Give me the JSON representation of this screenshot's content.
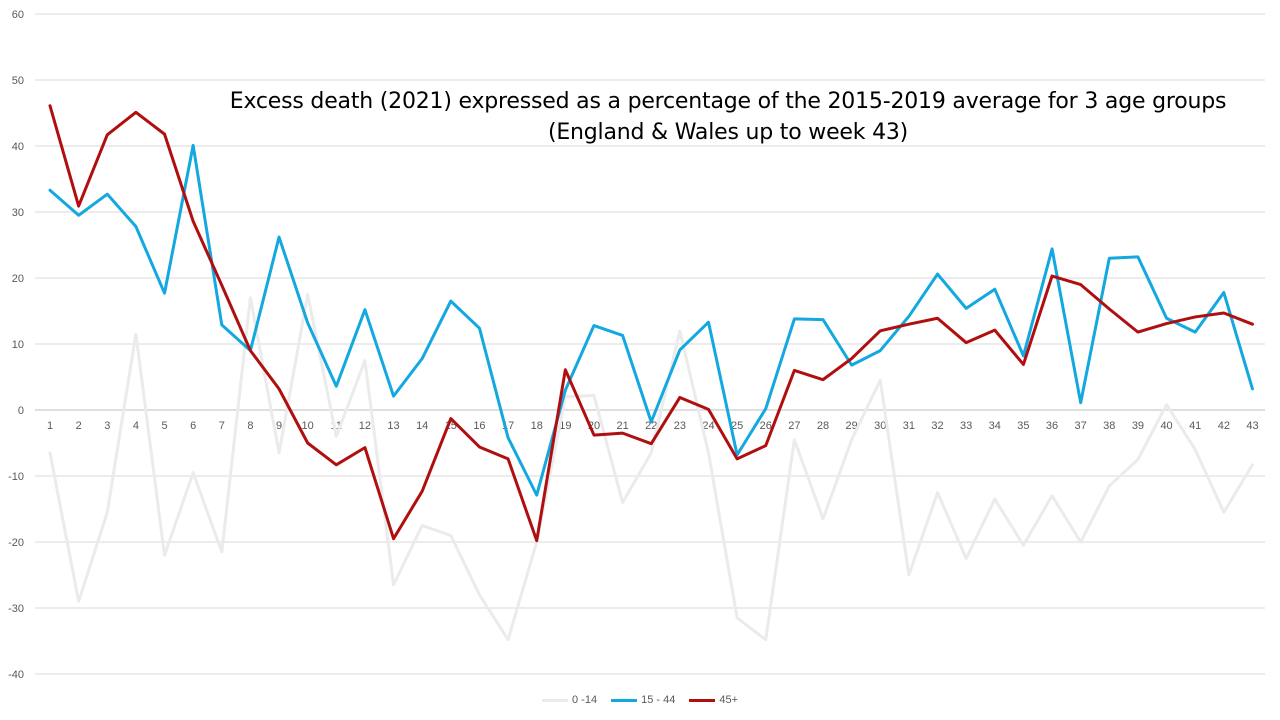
{
  "chart_data": {
    "type": "line",
    "title_lines": [
      "Excess death (2021) expressed as a percentage of the 2015-2019 average for 3 age groups",
      "(England & Wales up to week 43)"
    ],
    "categories": [
      "1",
      "2",
      "3",
      "4",
      "5",
      "6",
      "7",
      "8",
      "9",
      "10",
      "11",
      "12",
      "13",
      "14",
      "15",
      "16",
      "17",
      "18",
      "19",
      "20",
      "21",
      "22",
      "23",
      "24",
      "25",
      "26",
      "27",
      "28",
      "29",
      "30",
      "31",
      "32",
      "33",
      "34",
      "35",
      "36",
      "37",
      "38",
      "39",
      "40",
      "41",
      "42",
      "43"
    ],
    "ylim": [
      -40,
      60
    ],
    "yticks": [
      -40,
      -30,
      -20,
      -10,
      0,
      10,
      20,
      30,
      40,
      50,
      60
    ],
    "grid": true,
    "legend_position": "bottom",
    "series": [
      {
        "name": "0 -14",
        "color": "#ebebeb",
        "values": [
          -6.5,
          -29,
          -15.5,
          11.5,
          -22,
          -9.5,
          -21.5,
          17,
          -6.5,
          17.5,
          -4,
          7.5,
          -26.5,
          -17.5,
          -19,
          -28,
          -34.8,
          -20,
          2,
          2.2,
          -14,
          -6.5,
          12,
          -6.5,
          -31.5,
          -34.8,
          -4.5,
          -16.5,
          -4.5,
          4.5,
          -25,
          -12.5,
          -22.5,
          -13.5,
          -20.5,
          -13,
          -20,
          -11.5,
          -7.5,
          0.8,
          -6,
          -15.5,
          -8.3
        ]
      },
      {
        "name": "15 - 44",
        "color": "#13a8e0",
        "values": [
          33.3,
          29.5,
          32.7,
          27.8,
          17.7,
          40.1,
          12.9,
          9,
          26.2,
          13.2,
          3.6,
          15.2,
          2.1,
          7.8,
          16.5,
          12.4,
          -4.2,
          -12.9,
          3,
          12.8,
          11.3,
          -1.8,
          9.1,
          13.3,
          -6.8,
          0.2,
          13.8,
          13.7,
          6.8,
          9,
          14.2,
          20.6,
          15.4,
          18.3,
          8.2,
          24.4,
          1.1,
          23,
          23.2,
          13.9,
          11.8,
          17.8,
          3.2
        ]
      },
      {
        "name": "45+",
        "color": "#b00f0f",
        "values": [
          46.1,
          30.9,
          41.7,
          45.1,
          41.8,
          28.6,
          18.9,
          9,
          3.2,
          -5,
          -8.3,
          -5.7,
          -19.5,
          -12.3,
          -1.3,
          -5.6,
          -7.4,
          -19.8,
          6.1,
          -3.8,
          -3.5,
          -5.1,
          1.9,
          0.1,
          -7.4,
          -5.4,
          6,
          4.6,
          7.8,
          12,
          13,
          13.9,
          10.2,
          12.1,
          6.9,
          20.3,
          19,
          15.3,
          11.8,
          13.1,
          14.1,
          14.7,
          13
        ]
      }
    ]
  }
}
